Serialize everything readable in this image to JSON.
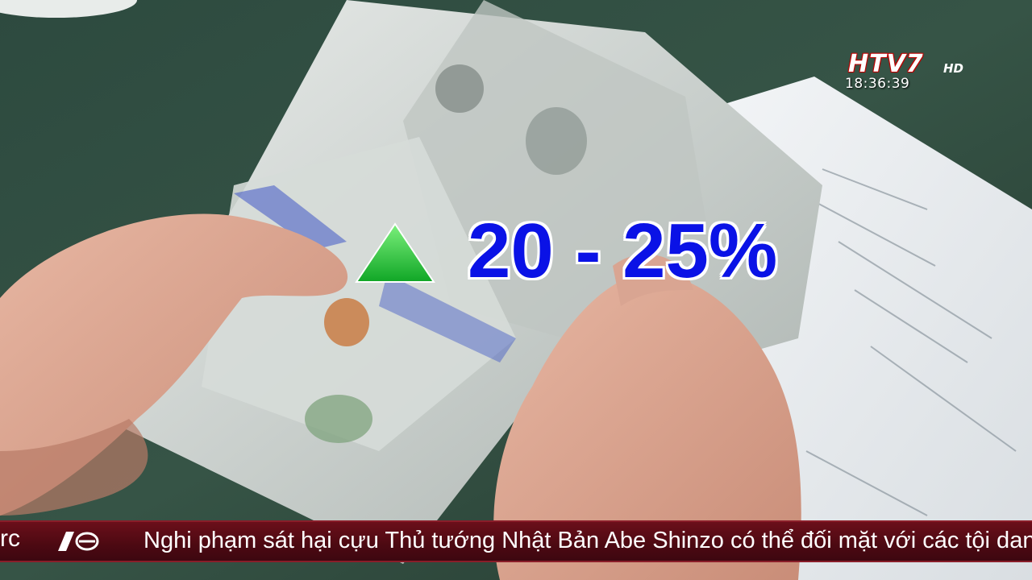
{
  "channel": {
    "logo_text": "HTV7",
    "logo_suffix": "HD",
    "time": "18:36:39"
  },
  "overlay": {
    "stat_text": "20 - 25%",
    "arrow": "up-triangle-icon",
    "arrow_color": "#22c83a",
    "text_color": "#0a12e6"
  },
  "ticker": {
    "prev_fragment": "rc",
    "icon": "tv-logo-icon",
    "headline": "Nghi phạm sát hại cựu Thủ tướng Nhật Bản Abe Shinzo có thể đối mặt với các tội danh mớ",
    "background_color": "#4c0912"
  }
}
